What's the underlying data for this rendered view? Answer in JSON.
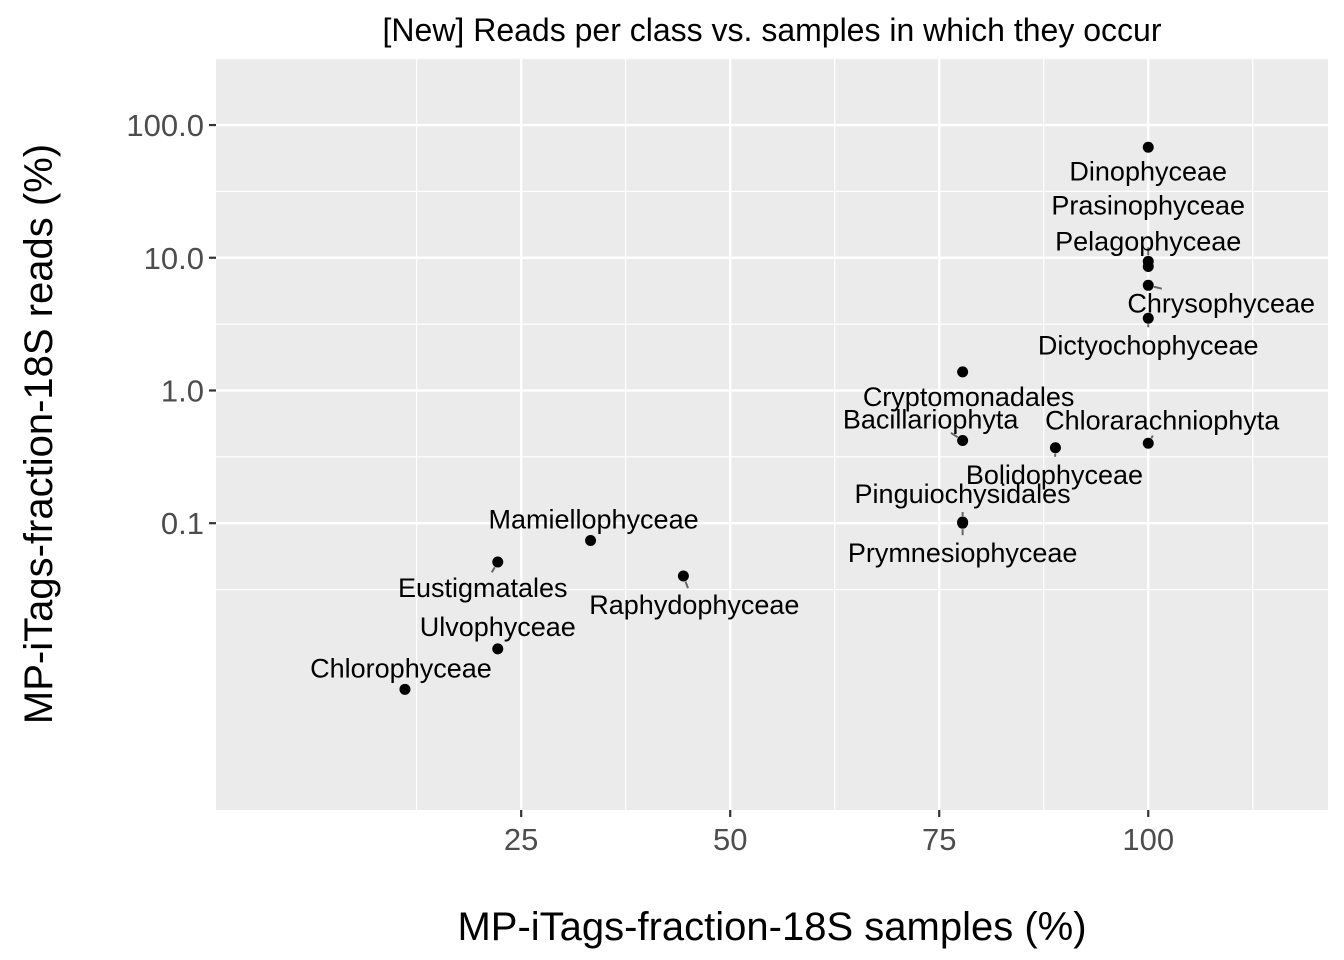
{
  "chart_data": {
    "type": "scatter",
    "title": "[New] Reads per class vs. samples in which they occur",
    "xlabel": "MP-iTags-fraction-18S samples (%)",
    "ylabel": "MP-iTags-fraction-18S reads (%)",
    "x_scale": "linear",
    "y_scale": "log10",
    "xlim": [
      -11.5,
      121.5
    ],
    "ylim": [
      0.00069,
      320
    ],
    "x_ticks": [
      25,
      50,
      75,
      100
    ],
    "x_tick_labels": [
      "25",
      "50",
      "75",
      "100"
    ],
    "y_ticks": [
      0.1,
      1,
      10,
      100
    ],
    "y_tick_labels": [
      "0.1",
      "1.0",
      "10.0",
      "100.0"
    ],
    "grid": true,
    "legend": "none",
    "points": [
      {
        "label": "Dinophyceae",
        "x": 100.0,
        "y": 68
      },
      {
        "label": "Prasinophyceae",
        "x": 100.0,
        "y": 9.4
      },
      {
        "label": "Pelagophyceae",
        "x": 100.0,
        "y": 8.6
      },
      {
        "label": "Chrysophyceae",
        "x": 100.0,
        "y": 6.2
      },
      {
        "label": "Dictyochophyceae",
        "x": 100.0,
        "y": 3.5
      },
      {
        "label": "Cryptomonadales",
        "x": 77.8,
        "y": 1.38
      },
      {
        "label": "Bacillariophyta",
        "x": 77.8,
        "y": 0.42
      },
      {
        "label": "Chlorarachniophyta",
        "x": 100.0,
        "y": 0.4
      },
      {
        "label": "Bolidophyceae",
        "x": 88.9,
        "y": 0.37
      },
      {
        "label": "Pinguiochysidales",
        "x": 77.8,
        "y": 0.102
      },
      {
        "label": "Prymnesiophyceae",
        "x": 77.8,
        "y": 0.1
      },
      {
        "label": "Mamiellophyceae",
        "x": 33.3,
        "y": 0.074
      },
      {
        "label": "Eustigmatales",
        "x": 22.2,
        "y": 0.051
      },
      {
        "label": "Raphydophyceae",
        "x": 44.4,
        "y": 0.04
      },
      {
        "label": "Ulvophyceae",
        "x": 22.2,
        "y": 0.0113
      },
      {
        "label": "Chlorophyceae",
        "x": 11.1,
        "y": 0.0056
      }
    ]
  }
}
